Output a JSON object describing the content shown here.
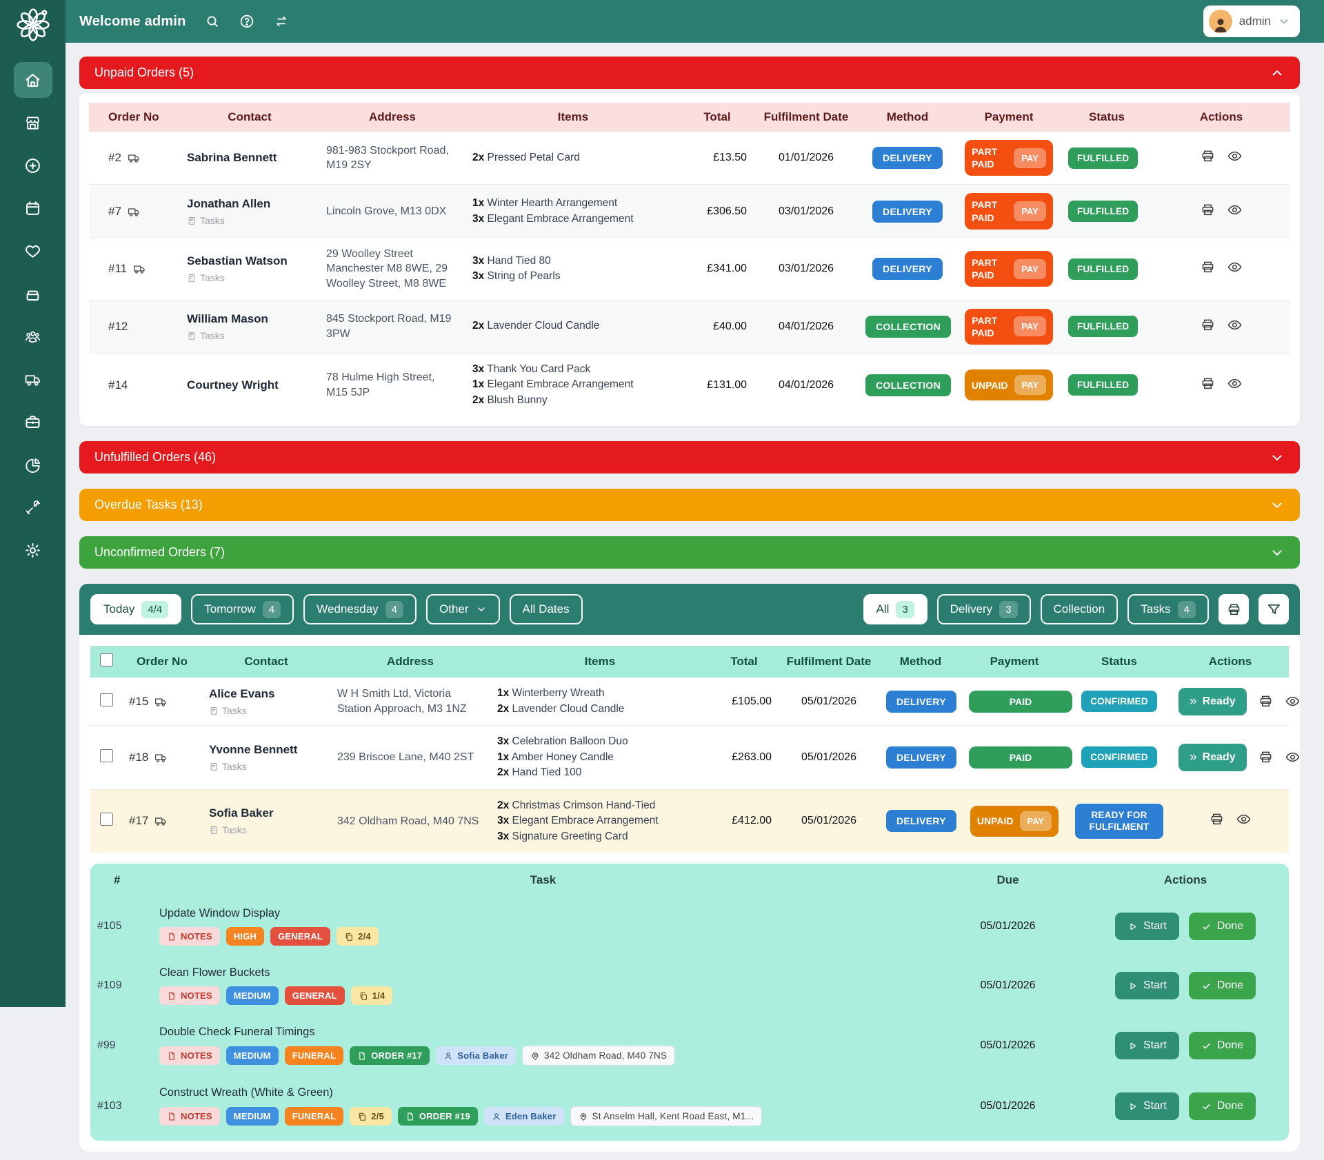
{
  "colors": {
    "topbar_teal": "#2a7d6f",
    "sidebar_green": "#1d5c50",
    "alert_red": "#e51a1f",
    "alert_orange": "#f59e00",
    "alert_green": "#3da33d",
    "delivery_blue": "#2d7fd3",
    "collection_green": "#2f9e5b",
    "part_paid_orange": "#f34f10",
    "unpaid_amber": "#e08100",
    "paid_green": "#2f9e5b",
    "confirmed_teal": "#1fa2b8",
    "ready_blue": "#2d7fd3",
    "mint_header": "#a6edd9",
    "task_mint": "#aceede",
    "row_highlight": "#fcf5df"
  },
  "topbar": {
    "welcome": "Welcome admin",
    "user": "admin"
  },
  "sidebar": {
    "active": "home",
    "items": [
      "home",
      "store",
      "add",
      "calendar",
      "heart",
      "drawer",
      "customers",
      "delivery",
      "work",
      "reports",
      "tools",
      "settings"
    ]
  },
  "alerts": {
    "unpaid": {
      "label": "Unpaid Orders (5)"
    },
    "collapsed": [
      {
        "label": "Unfulfilled Orders (46)",
        "type": "red"
      },
      {
        "label": "Overdue Tasks (13)",
        "type": "orange"
      },
      {
        "label": "Unconfirmed Orders (7)",
        "type": "green"
      }
    ]
  },
  "labels": {
    "tasks": "Tasks",
    "ready": "Ready",
    "start": "Start",
    "done": "Done"
  },
  "order_headers": [
    "Order No",
    "Contact",
    "Address",
    "Items",
    "Total",
    "Fulfilment Date",
    "Method",
    "Payment",
    "Status",
    "Actions"
  ],
  "unpaid_orders": [
    {
      "no": "#2",
      "truck": true,
      "contact": "Sabrina Bennett",
      "tasks": false,
      "address": "981-983 Stockport Road, M19 2SY",
      "items": [
        {
          "qty": "2x",
          "name": "Pressed Petal Card"
        }
      ],
      "total": "£13.50",
      "date": "01/01/2026",
      "method": "DELIVERY",
      "payment": "PART PAID",
      "pay": "PAY",
      "status": "FULFILLED"
    },
    {
      "no": "#7",
      "truck": true,
      "contact": "Jonathan Allen",
      "tasks": true,
      "address": "Lincoln Grove, M13 0DX",
      "items": [
        {
          "qty": "1x",
          "name": "Winter Hearth Arrangement"
        },
        {
          "qty": "3x",
          "name": "Elegant Embrace Arrangement"
        }
      ],
      "total": "£306.50",
      "date": "03/01/2026",
      "method": "DELIVERY",
      "payment": "PART PAID",
      "pay": "PAY",
      "status": "FULFILLED"
    },
    {
      "no": "#11",
      "truck": true,
      "contact": "Sebastian Watson",
      "tasks": true,
      "address": "29 Woolley Street Manchester M8 8WE, 29 Woolley Street, M8 8WE",
      "items": [
        {
          "qty": "3x",
          "name": "Hand Tied 80"
        },
        {
          "qty": "3x",
          "name": "String of Pearls"
        }
      ],
      "total": "£341.00",
      "date": "03/01/2026",
      "method": "DELIVERY",
      "payment": "PART PAID",
      "pay": "PAY",
      "status": "FULFILLED"
    },
    {
      "no": "#12",
      "truck": false,
      "contact": "William Mason",
      "tasks": true,
      "address": "845 Stockport Road, M19 3PW",
      "items": [
        {
          "qty": "2x",
          "name": "Lavender Cloud Candle"
        }
      ],
      "total": "£40.00",
      "date": "04/01/2026",
      "method": "COLLECTION",
      "payment": "PART PAID",
      "pay": "PAY",
      "status": "FULFILLED"
    },
    {
      "no": "#14",
      "truck": false,
      "contact": "Courtney Wright",
      "tasks": false,
      "address": "78 Hulme High Street, M15 5JP",
      "items": [
        {
          "qty": "3x",
          "name": "Thank You Card Pack"
        },
        {
          "qty": "1x",
          "name": "Elegant Embrace Arrangement"
        },
        {
          "qty": "2x",
          "name": "Blush Bunny"
        }
      ],
      "total": "£131.00",
      "date": "04/01/2026",
      "method": "COLLECTION",
      "payment": "UNPAID",
      "pay": "PAY",
      "status": "FULFILLED"
    }
  ],
  "filters": {
    "dates": [
      {
        "label": "Today",
        "badge": "4/4",
        "active": true
      },
      {
        "label": "Tomorrow",
        "badge": "4"
      },
      {
        "label": "Wednesday",
        "badge": "4"
      },
      {
        "label": "Other",
        "dropdown": true
      },
      {
        "label": "All Dates"
      }
    ],
    "types": [
      {
        "label": "All",
        "badge": "3",
        "active": true
      },
      {
        "label": "Delivery",
        "badge": "3"
      },
      {
        "label": "Collection"
      },
      {
        "label": "Tasks",
        "badge": "4"
      }
    ]
  },
  "today_orders": [
    {
      "no": "#15",
      "truck": true,
      "contact": "Alice Evans",
      "tasks": true,
      "address": "W H Smith Ltd, Victoria Station Approach, M3 1NZ",
      "items": [
        {
          "qty": "1x",
          "name": "Winterberry Wreath"
        },
        {
          "qty": "2x",
          "name": "Lavender Cloud Candle"
        }
      ],
      "total": "£105.00",
      "date": "05/01/2026",
      "method": "DELIVERY",
      "payment": "PAID",
      "status": "CONFIRMED",
      "ready": true
    },
    {
      "no": "#18",
      "truck": true,
      "contact": "Yvonne Bennett",
      "tasks": true,
      "address": "239 Briscoe Lane, M40 2ST",
      "items": [
        {
          "qty": "3x",
          "name": "Celebration Balloon Duo"
        },
        {
          "qty": "1x",
          "name": "Amber Honey Candle"
        },
        {
          "qty": "2x",
          "name": "Hand Tied 100"
        }
      ],
      "total": "£263.00",
      "date": "05/01/2026",
      "method": "DELIVERY",
      "payment": "PAID",
      "status": "CONFIRMED",
      "ready": true
    },
    {
      "no": "#17",
      "truck": true,
      "contact": "Sofia Baker",
      "tasks": true,
      "address": "342 Oldham Road, M40 7NS",
      "items": [
        {
          "qty": "2x",
          "name": "Christmas Crimson Hand-Tied"
        },
        {
          "qty": "3x",
          "name": "Elegant Embrace Arrangement"
        },
        {
          "qty": "3x",
          "name": "Signature Greeting Card"
        }
      ],
      "total": "£412.00",
      "date": "05/01/2026",
      "method": "DELIVERY",
      "payment": "UNPAID",
      "pay": "PAY",
      "status": "READY FOR FULFILMENT",
      "ready": false,
      "highlight": true
    }
  ],
  "tasks": {
    "headers": [
      "#",
      "Task",
      "Due",
      "Actions"
    ],
    "rows": [
      {
        "no": "#105",
        "title": "Update Window Display",
        "due": "05/01/2026",
        "badges": [
          {
            "type": "notes",
            "label": "NOTES"
          },
          {
            "type": "high",
            "label": "HIGH"
          },
          {
            "type": "general",
            "label": "GENERAL"
          },
          {
            "type": "count",
            "label": "2/4"
          }
        ]
      },
      {
        "no": "#109",
        "title": "Clean Flower Buckets",
        "due": "05/01/2026",
        "badges": [
          {
            "type": "notes",
            "label": "NOTES"
          },
          {
            "type": "medium",
            "label": "MEDIUM"
          },
          {
            "type": "general",
            "label": "GENERAL"
          },
          {
            "type": "count",
            "label": "1/4"
          }
        ]
      },
      {
        "no": "#99",
        "title": "Double Check Funeral Timings",
        "due": "05/01/2026",
        "badges": [
          {
            "type": "notes",
            "label": "NOTES"
          },
          {
            "type": "medium",
            "label": "MEDIUM"
          },
          {
            "type": "funeral",
            "label": "FUNERAL"
          },
          {
            "type": "order",
            "label": "ORDER #17"
          },
          {
            "type": "person",
            "label": "Sofia Baker"
          },
          {
            "type": "location",
            "label": "342 Oldham Road, M40 7NS"
          }
        ]
      },
      {
        "no": "#103",
        "title": "Construct Wreath (White & Green)",
        "due": "05/01/2026",
        "badges": [
          {
            "type": "notes",
            "label": "NOTES"
          },
          {
            "type": "medium",
            "label": "MEDIUM"
          },
          {
            "type": "funeral",
            "label": "FUNERAL"
          },
          {
            "type": "count",
            "label": "2/5"
          },
          {
            "type": "order",
            "label": "ORDER #19"
          },
          {
            "type": "person",
            "label": "Eden Baker"
          },
          {
            "type": "location",
            "label": "St Anselm Hall, Kent Road East, M1..."
          }
        ]
      }
    ]
  }
}
